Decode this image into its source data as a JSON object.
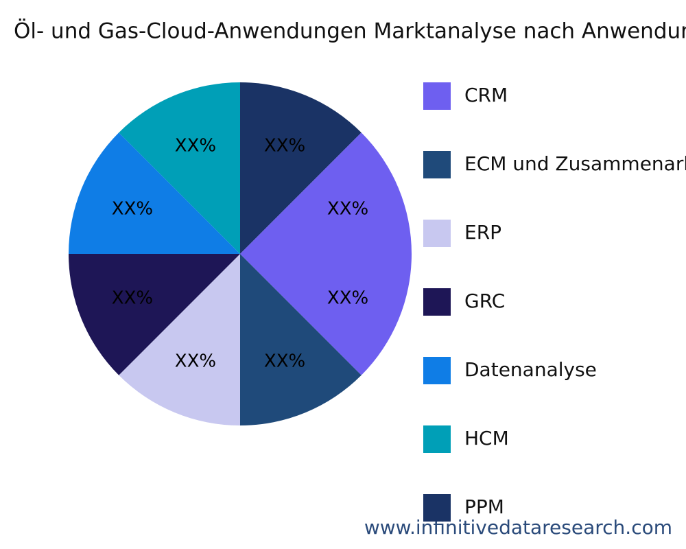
{
  "chart_data": {
    "type": "pie",
    "title": "Öl- und Gas-Cloud-Anwendungen Marktanalyse nach Anwendung",
    "categories": [
      "CRM",
      "ECM und Zusammenarbeit",
      "ERP",
      "GRC",
      "Datenanalyse",
      "HCM",
      "PPM",
      null
    ],
    "values": [
      12.5,
      12.5,
      12.5,
      12.5,
      12.5,
      12.5,
      12.5,
      12.5
    ],
    "value_labels": [
      "XX%",
      "XX%",
      "XX%",
      "XX%",
      "XX%",
      "XX%",
      "XX%",
      "XX%"
    ],
    "colors": [
      "#6e5ff0",
      "#1f4a7a",
      "#c8c8f0",
      "#1e1656",
      "#0f7de6",
      "#009fb7",
      "#1a3365",
      "#6e5ff0"
    ],
    "source": "www.infinitivedataresearch.com"
  }
}
